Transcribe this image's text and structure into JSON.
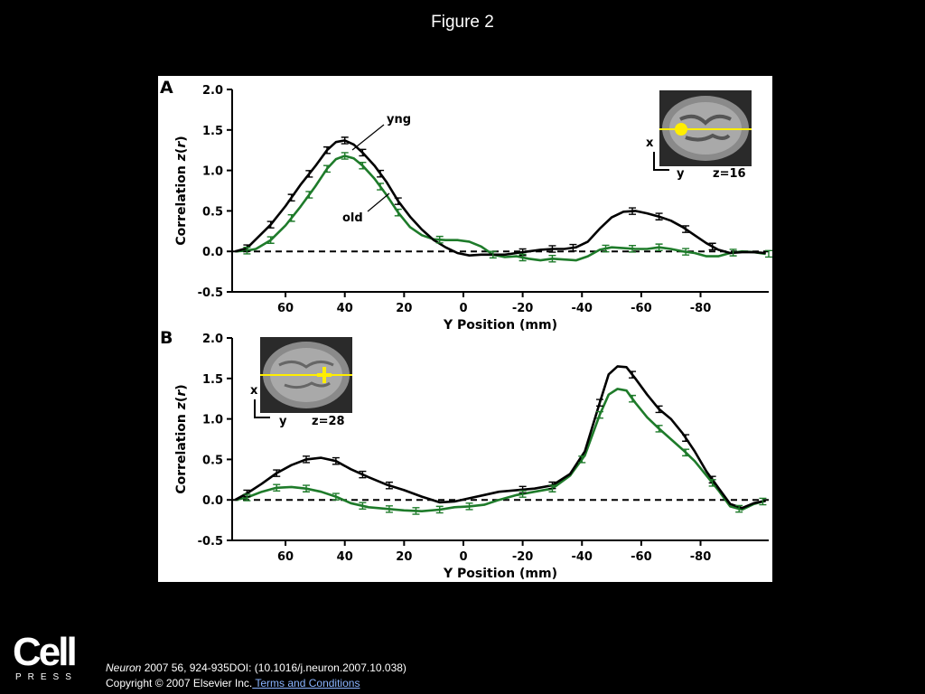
{
  "figure_title": "Figure 2",
  "publisher": {
    "logo": "Cell",
    "logo_sub": "PRESS"
  },
  "citation": {
    "journal": "Neuron",
    "ref": " 2007 56, 924-935DOI: (10.1016/j.neuron.2007.10.038)",
    "copyright": "Copyright © 2007 Elsevier Inc.",
    "link": " Terms and Conditions"
  },
  "colors": {
    "yng": "#000000",
    "old": "#1e7b2a",
    "seed": "#ffee00"
  },
  "chart_data": [
    {
      "type": "line",
      "panel": "A",
      "xlabel": "Y Position (mm)",
      "ylabel_main": "Correlation ",
      "ylabel_var": "z",
      "ylabel_paren_open": "(",
      "ylabel_r": "r",
      "ylabel_paren_close": ")",
      "xlim": [
        78,
        -103
      ],
      "ylim": [
        -0.5,
        2.0
      ],
      "x_ticks": [
        60,
        40,
        20,
        0,
        -20,
        -40,
        -60,
        -80
      ],
      "x_tick_labels": [
        "60",
        "40",
        "20",
        "0",
        "-20",
        "-40",
        "-60",
        "-80"
      ],
      "y_ticks": [
        2.0,
        1.5,
        1.0,
        0.5,
        0.0,
        -0.5
      ],
      "y_tick_labels": [
        "2.0",
        "1.5",
        "1.0",
        "0.5",
        "0.0",
        "-0.5"
      ],
      "series": [
        {
          "name": "yng",
          "color": "#000000",
          "x": [
            77,
            73,
            70,
            65,
            60,
            55,
            50,
            46,
            43,
            40,
            37,
            34,
            30,
            26,
            22,
            18,
            14,
            10,
            6,
            2,
            -2,
            -6,
            -10,
            -14,
            -18,
            -22,
            -26,
            -30,
            -34,
            -38,
            -42,
            -46,
            -50,
            -54,
            -58,
            -62,
            -66,
            -70,
            -74,
            -78,
            -82,
            -86,
            -90,
            -94,
            -98,
            -102
          ],
          "y": [
            0.0,
            0.04,
            0.15,
            0.33,
            0.56,
            0.82,
            1.05,
            1.25,
            1.35,
            1.37,
            1.32,
            1.22,
            1.06,
            0.86,
            0.62,
            0.43,
            0.27,
            0.14,
            0.05,
            -0.02,
            -0.05,
            -0.04,
            -0.04,
            -0.04,
            -0.02,
            0.0,
            0.02,
            0.03,
            0.03,
            0.05,
            0.12,
            0.28,
            0.42,
            0.49,
            0.5,
            0.47,
            0.43,
            0.38,
            0.3,
            0.2,
            0.1,
            0.02,
            -0.02,
            -0.01,
            -0.01,
            -0.02
          ]
        },
        {
          "name": "old",
          "color": "#1e7b2a",
          "x": [
            77,
            73,
            70,
            65,
            60,
            55,
            50,
            46,
            43,
            40,
            37,
            34,
            30,
            26,
            22,
            18,
            14,
            10,
            6,
            2,
            -2,
            -6,
            -10,
            -14,
            -18,
            -22,
            -26,
            -30,
            -34,
            -38,
            -42,
            -46,
            -50,
            -54,
            -58,
            -62,
            -66,
            -70,
            -74,
            -78,
            -82,
            -86,
            -90,
            -94,
            -98,
            -102
          ],
          "y": [
            0.0,
            0.01,
            0.03,
            0.14,
            0.32,
            0.55,
            0.8,
            1.02,
            1.14,
            1.18,
            1.15,
            1.06,
            0.9,
            0.7,
            0.48,
            0.3,
            0.2,
            0.15,
            0.14,
            0.14,
            0.12,
            0.06,
            -0.04,
            -0.07,
            -0.06,
            -0.09,
            -0.11,
            -0.09,
            -0.1,
            -0.11,
            -0.06,
            0.02,
            0.05,
            0.04,
            0.03,
            0.03,
            0.05,
            0.03,
            0.0,
            -0.02,
            -0.06,
            -0.06,
            -0.02,
            0.0,
            -0.01,
            -0.03
          ]
        }
      ],
      "error_bars": {
        "yng": {
          "x": [
            73,
            65,
            58,
            52,
            46,
            40,
            34,
            28,
            22,
            -20,
            -30,
            -37,
            -57,
            -66,
            -75,
            -84
          ],
          "err": 0.04
        },
        "old": {
          "x": [
            73,
            65,
            58,
            52,
            46,
            40,
            34,
            28,
            22,
            8,
            -10,
            -20,
            -30,
            -48,
            -57,
            -66,
            -75,
            -91,
            -103
          ],
          "err": 0.04
        }
      },
      "annotations": {
        "yng": "yng",
        "old": "old"
      },
      "inset": {
        "x_label": "x",
        "y_label": "y",
        "z_label": "z=16"
      }
    },
    {
      "type": "line",
      "panel": "B",
      "xlabel": "Y Position (mm)",
      "ylabel_main": "Correlation ",
      "ylabel_var": "z",
      "ylabel_paren_open": "(",
      "ylabel_r": "r",
      "ylabel_paren_close": ")",
      "xlim": [
        78,
        -103
      ],
      "ylim": [
        -0.5,
        2.0
      ],
      "x_ticks": [
        60,
        40,
        20,
        0,
        -20,
        -40,
        -60,
        -80
      ],
      "x_tick_labels": [
        "60",
        "40",
        "20",
        "0",
        "-20",
        "-40",
        "-60",
        "-80"
      ],
      "y_ticks": [
        2.0,
        1.5,
        1.0,
        0.5,
        0.0,
        -0.5
      ],
      "y_tick_labels": [
        "2.0",
        "1.5",
        "1.0",
        "0.5",
        "0.0",
        "-0.5"
      ],
      "series": [
        {
          "name": "yng",
          "color": "#000000",
          "x": [
            77,
            73,
            68,
            63,
            58,
            53,
            48,
            43,
            38,
            32,
            26,
            20,
            14,
            8,
            3,
            -2,
            -7,
            -12,
            -18,
            -24,
            -30,
            -36,
            -41,
            -46,
            -49,
            -52,
            -55,
            -58,
            -62,
            -66,
            -70,
            -74,
            -78,
            -82,
            -86,
            -90,
            -94,
            -98,
            -102
          ],
          "y": [
            0.0,
            0.08,
            0.2,
            0.33,
            0.43,
            0.5,
            0.52,
            0.48,
            0.38,
            0.28,
            0.19,
            0.12,
            0.04,
            -0.03,
            -0.02,
            0.02,
            0.06,
            0.1,
            0.12,
            0.14,
            0.18,
            0.32,
            0.6,
            1.2,
            1.55,
            1.65,
            1.64,
            1.5,
            1.3,
            1.12,
            1.0,
            0.82,
            0.6,
            0.35,
            0.15,
            -0.05,
            -0.1,
            -0.04,
            -0.01
          ]
        },
        {
          "name": "old",
          "color": "#1e7b2a",
          "x": [
            77,
            73,
            68,
            63,
            58,
            53,
            48,
            43,
            38,
            32,
            26,
            20,
            14,
            8,
            3,
            -2,
            -7,
            -12,
            -18,
            -24,
            -30,
            -36,
            -41,
            -46,
            -49,
            -52,
            -55,
            -58,
            -62,
            -66,
            -70,
            -74,
            -78,
            -82,
            -86,
            -90,
            -94,
            -98,
            -102
          ],
          "y": [
            0.0,
            0.03,
            0.1,
            0.15,
            0.16,
            0.14,
            0.1,
            0.04,
            -0.04,
            -0.09,
            -0.11,
            -0.13,
            -0.14,
            -0.12,
            -0.09,
            -0.08,
            -0.06,
            0.0,
            0.06,
            0.1,
            0.14,
            0.3,
            0.55,
            1.05,
            1.3,
            1.37,
            1.35,
            1.2,
            1.02,
            0.88,
            0.75,
            0.62,
            0.48,
            0.3,
            0.12,
            -0.08,
            -0.12,
            -0.05,
            -0.01
          ]
        }
      ],
      "error_bars": {
        "yng": {
          "x": [
            73,
            63,
            53,
            43,
            34,
            25,
            -20,
            -30,
            -46,
            -57,
            -66,
            -75,
            -84
          ],
          "err": 0.04
        },
        "old": {
          "x": [
            73,
            63,
            53,
            43,
            34,
            25,
            16,
            8,
            -2,
            -20,
            -30,
            -40,
            -46,
            -57,
            -66,
            -75,
            -84,
            -93,
            -101
          ],
          "err": 0.04
        }
      },
      "inset": {
        "x_label": "x",
        "y_label": "y",
        "z_label": "z=28"
      }
    }
  ]
}
